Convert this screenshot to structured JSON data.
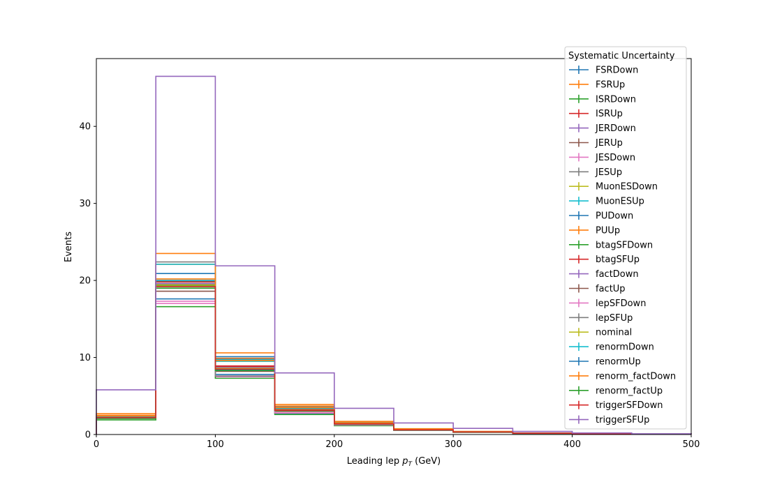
{
  "chart_data": {
    "type": "histogram",
    "xlabel_main": "Leading lep ",
    "xlabel_sym": "p",
    "xlabel_sub": "T",
    "xlabel_unit": " (GeV)",
    "ylabel": "Events",
    "xlim": [
      0,
      500
    ],
    "ylim": [
      0,
      48.8
    ],
    "xticks": [
      0,
      100,
      200,
      300,
      400,
      500
    ],
    "yticks": [
      0,
      10,
      20,
      30,
      40
    ],
    "bin_edges": [
      0,
      50,
      100,
      150,
      200,
      250,
      300,
      350,
      400,
      450,
      500
    ],
    "legend_title": "Systematic Uncertainty",
    "legend_position": "top-right",
    "series": [
      {
        "name": "FSRDown",
        "color": "#1f77b4",
        "values": [
          2.1,
          17.6,
          7.8,
          2.7,
          1.2,
          0.55,
          0.3,
          0.15,
          0.08,
          0.05
        ]
      },
      {
        "name": "FSRUp",
        "color": "#ff7f0e",
        "values": [
          2.5,
          22.1,
          9.9,
          3.7,
          1.6,
          0.7,
          0.38,
          0.18,
          0.1,
          0.06
        ]
      },
      {
        "name": "ISRDown",
        "color": "#2ca02c",
        "values": [
          2.2,
          19.3,
          8.6,
          3.2,
          1.4,
          0.62,
          0.33,
          0.16,
          0.09,
          0.05
        ]
      },
      {
        "name": "ISRUp",
        "color": "#d62728",
        "values": [
          2.3,
          19.8,
          8.8,
          3.3,
          1.45,
          0.64,
          0.34,
          0.17,
          0.09,
          0.05
        ]
      },
      {
        "name": "JERDown",
        "color": "#9467bd",
        "values": [
          2.2,
          19.4,
          8.6,
          3.2,
          1.4,
          0.62,
          0.33,
          0.16,
          0.09,
          0.05
        ]
      },
      {
        "name": "JERUp",
        "color": "#8c564b",
        "values": [
          2.2,
          19.9,
          8.7,
          3.2,
          1.4,
          0.63,
          0.33,
          0.16,
          0.09,
          0.05
        ]
      },
      {
        "name": "JESDown",
        "color": "#e377c2",
        "values": [
          2.1,
          17.0,
          7.5,
          2.8,
          1.25,
          0.56,
          0.3,
          0.15,
          0.08,
          0.05
        ]
      },
      {
        "name": "JESUp",
        "color": "#7f7f7f",
        "values": [
          2.4,
          22.4,
          9.8,
          3.6,
          1.55,
          0.7,
          0.37,
          0.18,
          0.1,
          0.06
        ]
      },
      {
        "name": "MuonESDown",
        "color": "#bcbd22",
        "values": [
          2.2,
          19.4,
          8.6,
          3.2,
          1.4,
          0.62,
          0.33,
          0.16,
          0.09,
          0.05
        ]
      },
      {
        "name": "MuonESUp",
        "color": "#17becf",
        "values": [
          2.3,
          22.1,
          9.7,
          3.5,
          1.5,
          0.68,
          0.36,
          0.17,
          0.1,
          0.06
        ]
      },
      {
        "name": "PUDown",
        "color": "#1f77b4",
        "values": [
          2.2,
          20.9,
          10.1,
          3.3,
          1.4,
          0.63,
          0.33,
          0.16,
          0.09,
          0.05
        ]
      },
      {
        "name": "PUUp",
        "color": "#ff7f0e",
        "values": [
          2.7,
          23.5,
          10.6,
          3.9,
          1.7,
          0.75,
          0.4,
          0.19,
          0.11,
          0.06
        ]
      },
      {
        "name": "btagSFDown",
        "color": "#2ca02c",
        "values": [
          1.9,
          16.6,
          7.3,
          2.6,
          1.15,
          0.52,
          0.28,
          0.14,
          0.08,
          0.04
        ]
      },
      {
        "name": "btagSFUp",
        "color": "#d62728",
        "values": [
          2.3,
          20.0,
          8.9,
          3.3,
          1.45,
          0.65,
          0.34,
          0.17,
          0.09,
          0.05
        ]
      },
      {
        "name": "factDown",
        "color": "#9467bd",
        "values": [
          2.2,
          19.6,
          8.7,
          3.2,
          1.4,
          0.63,
          0.33,
          0.16,
          0.09,
          0.05
        ]
      },
      {
        "name": "factUp",
        "color": "#8c564b",
        "values": [
          2.1,
          18.6,
          8.2,
          3.0,
          1.3,
          0.59,
          0.31,
          0.15,
          0.08,
          0.05
        ]
      },
      {
        "name": "lepSFDown",
        "color": "#e377c2",
        "values": [
          2.1,
          17.3,
          7.6,
          2.8,
          1.25,
          0.56,
          0.3,
          0.15,
          0.08,
          0.05
        ]
      },
      {
        "name": "lepSFUp",
        "color": "#7f7f7f",
        "values": [
          2.2,
          19.5,
          7.6,
          3.2,
          1.4,
          0.62,
          0.33,
          0.16,
          0.09,
          0.05
        ]
      },
      {
        "name": "nominal",
        "color": "#bcbd22",
        "values": [
          2.2,
          19.4,
          8.6,
          3.2,
          1.4,
          0.62,
          0.33,
          0.16,
          0.09,
          0.05
        ]
      },
      {
        "name": "renormDown",
        "color": "#17becf",
        "values": [
          2.3,
          20.0,
          9.5,
          3.4,
          1.5,
          0.66,
          0.35,
          0.17,
          0.09,
          0.05
        ]
      },
      {
        "name": "renormUp",
        "color": "#1f77b4",
        "values": [
          2.2,
          19.0,
          8.4,
          3.1,
          1.35,
          0.6,
          0.32,
          0.16,
          0.09,
          0.05
        ]
      },
      {
        "name": "renorm_factDown",
        "color": "#ff7f0e",
        "values": [
          2.4,
          20.2,
          9.6,
          3.5,
          1.5,
          0.67,
          0.36,
          0.17,
          0.1,
          0.06
        ]
      },
      {
        "name": "renorm_factUp",
        "color": "#2ca02c",
        "values": [
          2.1,
          19.0,
          8.3,
          3.1,
          1.35,
          0.6,
          0.32,
          0.15,
          0.08,
          0.05
        ]
      },
      {
        "name": "triggerSFDown",
        "color": "#d62728",
        "values": [
          2.2,
          19.2,
          8.5,
          3.15,
          1.38,
          0.61,
          0.32,
          0.16,
          0.09,
          0.05
        ]
      },
      {
        "name": "triggerSFUp",
        "color": "#9467bd",
        "values": [
          5.8,
          46.5,
          21.9,
          8.0,
          3.4,
          1.5,
          0.8,
          0.4,
          0.2,
          0.1
        ]
      }
    ]
  }
}
